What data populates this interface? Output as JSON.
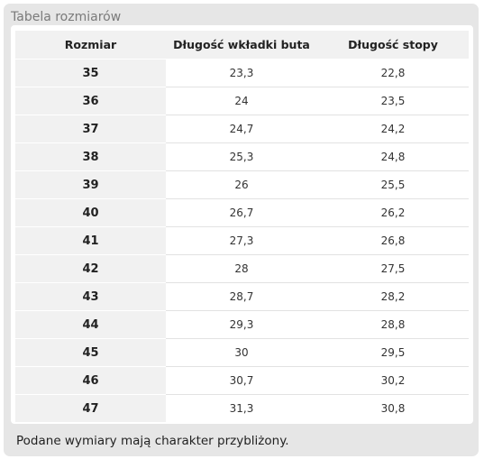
{
  "panel": {
    "title": "Tabela rozmiarów"
  },
  "table": {
    "headers": [
      "Rozmiar",
      "Długość wkładki buta",
      "Długość stopy"
    ],
    "rows": [
      [
        "35",
        "23,3",
        "22,8"
      ],
      [
        "36",
        "24",
        "23,5"
      ],
      [
        "37",
        "24,7",
        "24,2"
      ],
      [
        "38",
        "25,3",
        "24,8"
      ],
      [
        "39",
        "26",
        "25,5"
      ],
      [
        "40",
        "26,7",
        "26,2"
      ],
      [
        "41",
        "27,3",
        "26,8"
      ],
      [
        "42",
        "28",
        "27,5"
      ],
      [
        "43",
        "28,7",
        "28,2"
      ],
      [
        "44",
        "29,3",
        "28,8"
      ],
      [
        "45",
        "30",
        "29,5"
      ],
      [
        "46",
        "30,7",
        "30,2"
      ],
      [
        "47",
        "31,3",
        "30,8"
      ]
    ]
  },
  "footnote": "Podane wymiary mają charakter przybliżony."
}
